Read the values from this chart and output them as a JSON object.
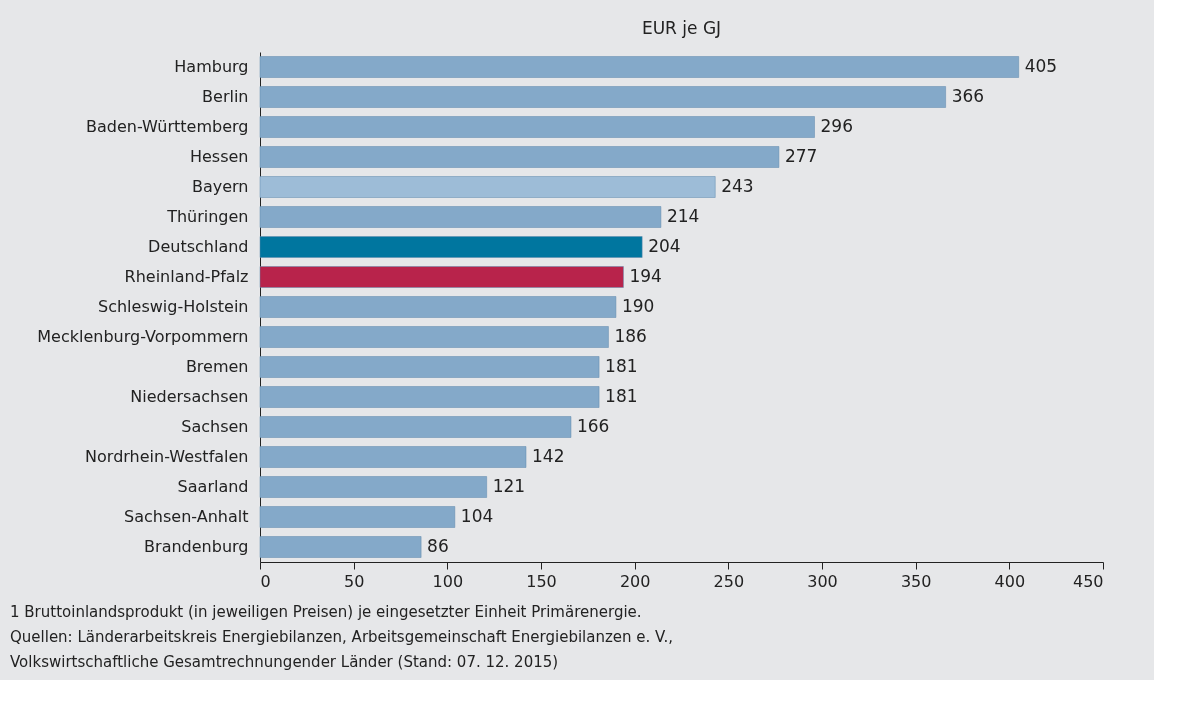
{
  "chart_data": {
    "type": "bar",
    "orientation": "horizontal",
    "title": "EUR je GJ",
    "categories": [
      "Hamburg",
      "Berlin",
      "Baden-Württemberg",
      "Hessen",
      "Bayern",
      "Thüringen",
      "Deutschland",
      "Rheinland-Pfalz",
      "Schleswig-Holstein",
      "Mecklenburg-Vorpommern",
      "Bremen",
      "Niedersachsen",
      "Sachsen",
      "Nordrhein-Westfalen",
      "Saarland",
      "Sachsen-Anhalt",
      "Brandenburg"
    ],
    "values": [
      405,
      366,
      296,
      277,
      243,
      214,
      204,
      194,
      190,
      186,
      181,
      181,
      166,
      142,
      121,
      104,
      86
    ],
    "colors": [
      "#84a9c9",
      "#84a9c9",
      "#84a9c9",
      "#84a9c9",
      "#9dbcd7",
      "#84a9c9",
      "#00769f",
      "#b8234b",
      "#84a9c9",
      "#84a9c9",
      "#84a9c9",
      "#84a9c9",
      "#84a9c9",
      "#84a9c9",
      "#84a9c9",
      "#84a9c9",
      "#84a9c9"
    ],
    "xlim": [
      0,
      450
    ],
    "xticks": [
      0,
      50,
      100,
      150,
      200,
      250,
      300,
      350,
      400,
      450
    ],
    "data_labels": true,
    "grid": false,
    "annotations": [
      "1 Bruttoinlandsprodukt (in jeweiligen Preisen) je eingesetzter Einheit Primärenergie.",
      "Quellen: Länderarbeitskreis Energiebilanzen, Arbeitsgemeinschaft Energiebilanzen e. V.,",
      "Volkswirtschaftliche Gesamtrechnungender Länder (Stand: 07. 12. 2015)"
    ]
  }
}
